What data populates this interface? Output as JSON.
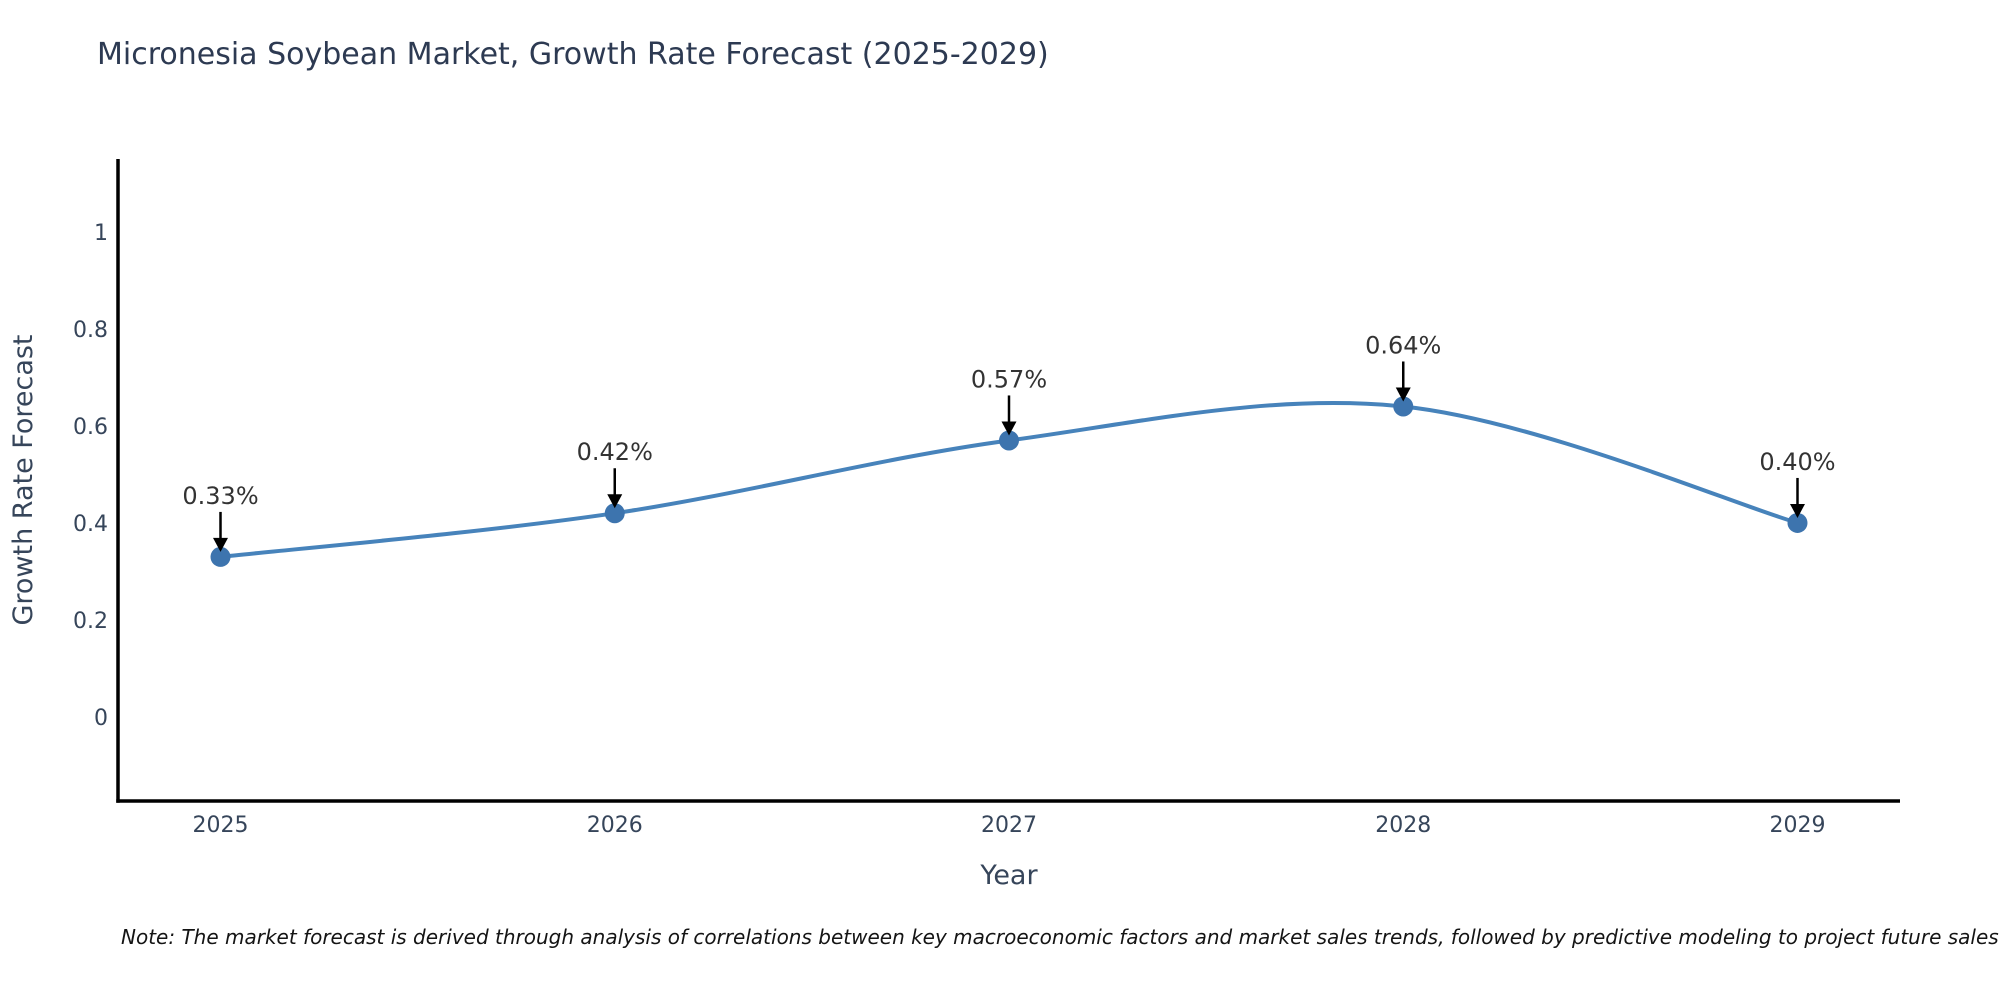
{
  "note": "Note: The market forecast is derived through analysis of correlations between key macroeconomic factors and market sales trends, followed by predictive modeling to project future sales",
  "chart_data": {
    "type": "line",
    "title": "Micronesia Soybean Market, Growth Rate Forecast (2025-2029)",
    "x": [
      2025,
      2026,
      2027,
      2028,
      2029
    ],
    "values": [
      0.33,
      0.42,
      0.57,
      0.64,
      0.4
    ],
    "point_labels": [
      "0.33%",
      "0.42%",
      "0.57%",
      "0.64%",
      "0.40%"
    ],
    "xlabel": "Year",
    "ylabel": "Growth Rate Forecast",
    "xtick_labels": [
      "2025",
      "2026",
      "2027",
      "2028",
      "2029"
    ],
    "yticks": [
      0,
      0.2,
      0.4,
      0.6,
      0.8,
      1
    ],
    "ytick_labels": [
      "0",
      "0.2",
      "0.4",
      "0.6",
      "0.8",
      "1"
    ],
    "xlim": [
      2024.74,
      2029.26
    ],
    "ylim": [
      -0.173,
      1.15
    ],
    "grid": false,
    "legend": "none",
    "curve": "smooth-spline",
    "marker": "circle",
    "annotation_style": "value label with downward black arrow to point",
    "colors": {
      "line": "#4783bb",
      "marker": "#3d74ae",
      "axis": "#000000",
      "tick_text": "#36455a",
      "title_text": "#2d3a52",
      "annotation_text": "#333333",
      "arrow": "#000000",
      "background": "#ffffff"
    }
  }
}
